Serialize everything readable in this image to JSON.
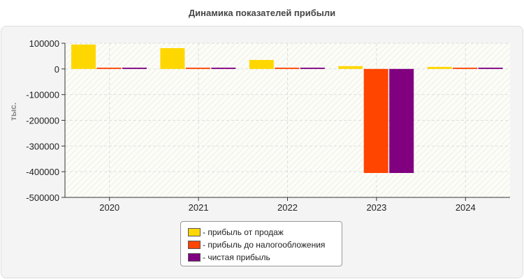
{
  "chart_data": {
    "type": "bar",
    "title": "Динамика показателей прибыли",
    "ylabel": "тыс.",
    "xlabel": "",
    "categories": [
      "2020",
      "2021",
      "2022",
      "2023",
      "2024"
    ],
    "ylim": [
      -500000,
      100000
    ],
    "yticks": [
      "100000",
      "0",
      "-100000",
      "-200000",
      "-300000",
      "-400000",
      "-500000"
    ],
    "grid": true,
    "legend_position": "bottom",
    "series": [
      {
        "name": "- прибыль от продаж",
        "color": "#FFD700",
        "values": [
          95000,
          81000,
          35000,
          11000,
          8000
        ]
      },
      {
        "name": "- прибыль до налогообложения",
        "color": "#FF4500",
        "values": [
          5000,
          5000,
          5000,
          -405000,
          5000
        ]
      },
      {
        "name": "- чистая прибыль",
        "color": "#800080",
        "values": [
          5000,
          5000,
          5000,
          -405000,
          5000
        ]
      }
    ]
  }
}
